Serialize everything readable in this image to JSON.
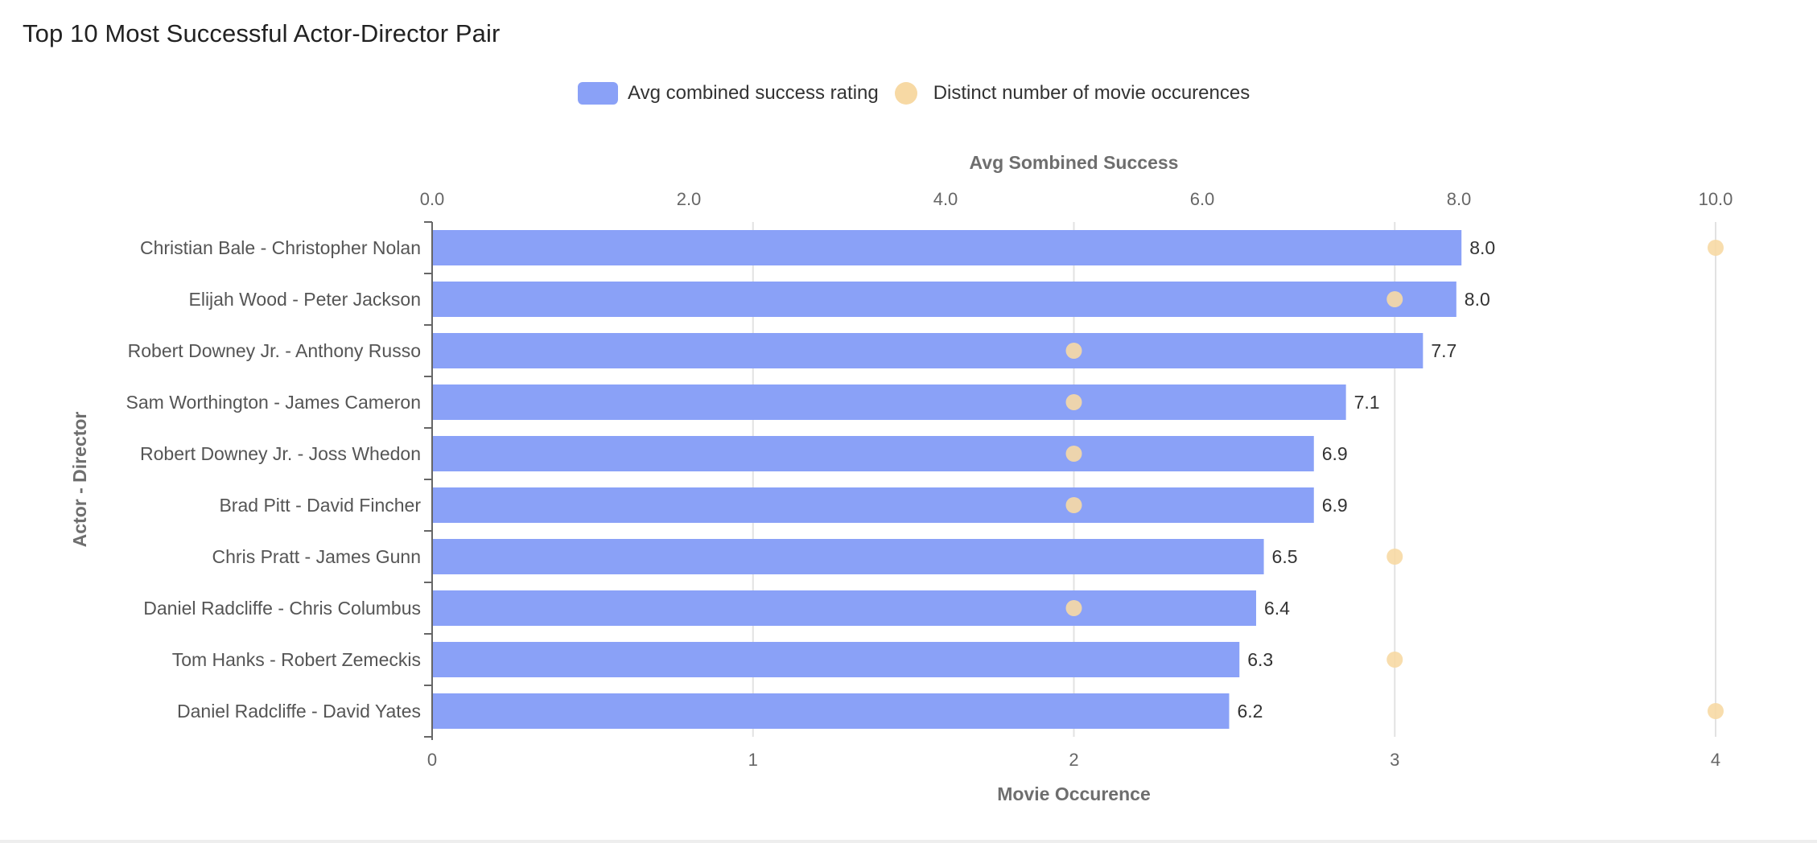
{
  "title": "Top 10 Most Successful Actor-Director Pair",
  "colors": {
    "bar": "#8aa1f7",
    "dot": "#f7d9a4",
    "grid": "#e2e2e2",
    "axis": "#666666",
    "axis_title": "#6e6e6e"
  },
  "legend": {
    "items": [
      {
        "label": "Avg combined success rating",
        "shape": "bar"
      },
      {
        "label": "Distinct number of movie occurences",
        "shape": "dot"
      }
    ]
  },
  "chart_data": {
    "type": "bar",
    "orientation": "horizontal",
    "categories": [
      "Christian Bale - Christopher Nolan",
      "Elijah Wood - Peter Jackson",
      "Robert Downey Jr. - Anthony Russo",
      "Sam Worthington - James Cameron",
      "Robert Downey Jr. - Joss Whedon",
      "Brad Pitt - David Fincher",
      "Chris Pratt - James Gunn",
      "Daniel Radcliffe - Chris Columbus",
      "Tom Hanks - Robert Zemeckis",
      "Daniel Radcliffe - David Yates"
    ],
    "series": [
      {
        "name": "Avg combined success rating",
        "mark": "bar",
        "axis": "top",
        "values": [
          8.02,
          7.98,
          7.72,
          7.12,
          6.87,
          6.87,
          6.48,
          6.42,
          6.29,
          6.21
        ],
        "labels": [
          "8.0",
          "8.0",
          "7.7",
          "7.1",
          "6.9",
          "6.9",
          "6.5",
          "6.4",
          "6.3",
          "6.2"
        ]
      },
      {
        "name": "Distinct number of movie occurences",
        "mark": "scatter",
        "axis": "bottom",
        "values": [
          4,
          3,
          2,
          2,
          2,
          2,
          3,
          2,
          3,
          4
        ]
      }
    ],
    "top_axis": {
      "title": "Avg Sombined Success",
      "range": [
        0,
        10
      ],
      "ticks": [
        "0.0",
        "2.0",
        "4.0",
        "6.0",
        "8.0",
        "10.0"
      ],
      "tick_values": [
        0,
        2,
        4,
        6,
        8,
        10
      ]
    },
    "bottom_axis": {
      "title": "Movie Occurence",
      "range": [
        0,
        4
      ],
      "ticks": [
        "0",
        "1",
        "2",
        "3",
        "4"
      ],
      "tick_values": [
        0,
        1,
        2,
        3,
        4
      ]
    },
    "y_axis": {
      "title": "Actor - Director"
    },
    "grid": "vertical",
    "legend_position": "top-center"
  }
}
